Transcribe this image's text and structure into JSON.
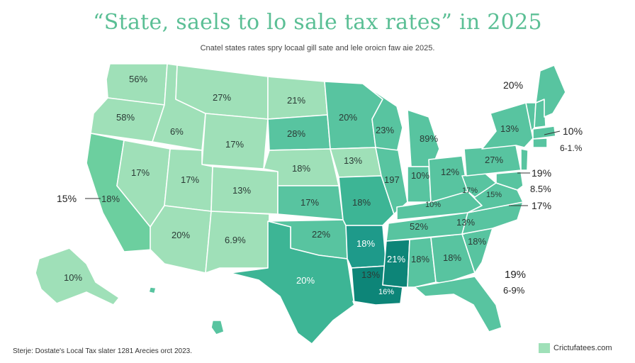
{
  "title": "“State, saels to lo sale tax rates” in 2025",
  "subtitle": "Cnatel states rates spry locaal gill sate and lele oroicn faw aie 2025.",
  "colors": {
    "light": "#9fe0b8",
    "mid_light": "#7ed5ac",
    "mid": "#58c4a0",
    "mid_dark": "#3db595",
    "dark": "#1e9a8a",
    "darkest": "#0d8578",
    "title": "#5bbf95"
  },
  "states": {
    "wa": "56%",
    "or": "58%",
    "ca": "18%",
    "id": "6%",
    "nv": "17%",
    "mt": "27%",
    "wy": "17%",
    "ut": "17%",
    "az": "20%",
    "co": "13%",
    "nm": "6.9%",
    "nd": "21%",
    "sd": "28%",
    "ne": "18%",
    "ks": "17%",
    "ok": "22%",
    "tx": "20%",
    "mn": "20%",
    "ia": "13%",
    "mo": "18%",
    "ar": "18%",
    "la": "13%",
    "la2": "16%",
    "wi": "23%",
    "il": "197",
    "mi": "89%",
    "in": "10%",
    "oh": "12%",
    "ky": "52%",
    "tn": "13%",
    "ms": "21%",
    "al": "18%",
    "ga": "18%",
    "sc": "18%",
    "ak": "10%",
    "ny": "13%",
    "pa": "27%",
    "wv": "17%",
    "va": "15%",
    "ky2": "10%"
  },
  "callouts": {
    "ca_left": "15%",
    "me_top": "20%",
    "ne_right": "10%",
    "ne_range": "6-1.%",
    "md_right": "19%",
    "de_right": "8.5%",
    "nc_right": "17%",
    "fl_right": "19%",
    "fl_range": "6-9%"
  },
  "source": "Sterje: Dostate's Local Tax slater 1281 Arecies orct 2023.",
  "legend": {
    "label": "Crictufatees.com"
  }
}
